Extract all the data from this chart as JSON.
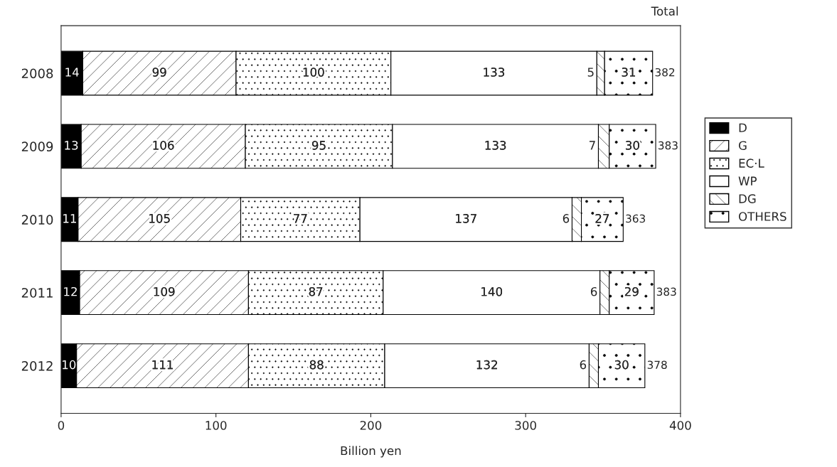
{
  "chart_data": {
    "type": "bar",
    "orientation": "horizontal",
    "stacked": true,
    "categories": [
      "2008",
      "2009",
      "2010",
      "2011",
      "2012"
    ],
    "series": [
      {
        "name": "D",
        "color": "#000000",
        "values": [
          14,
          13,
          11,
          12,
          10
        ]
      },
      {
        "name": "G",
        "color": "#000000",
        "values": [
          99,
          106,
          105,
          109,
          111
        ]
      },
      {
        "name": "EC·L",
        "color": "#000000",
        "values": [
          100,
          95,
          77,
          87,
          88
        ]
      },
      {
        "name": "WP",
        "color": "#ffffff",
        "values": [
          133,
          133,
          137,
          140,
          132
        ]
      },
      {
        "name": "DG",
        "color": "#000000",
        "values": [
          5,
          7,
          6,
          6,
          6
        ]
      },
      {
        "name": "OTHERS",
        "color": "#000000",
        "values": [
          31,
          30,
          27,
          29,
          30
        ]
      }
    ],
    "totals": [
      "382",
      "383",
      "363",
      "383",
      "378"
    ],
    "annotations": [
      "Total"
    ],
    "xlabel": "Billion yen",
    "xlim": [
      0,
      400
    ],
    "xticks": [
      0,
      100,
      200,
      300,
      400
    ],
    "data_labels": true,
    "grid": false,
    "legend": "right"
  }
}
